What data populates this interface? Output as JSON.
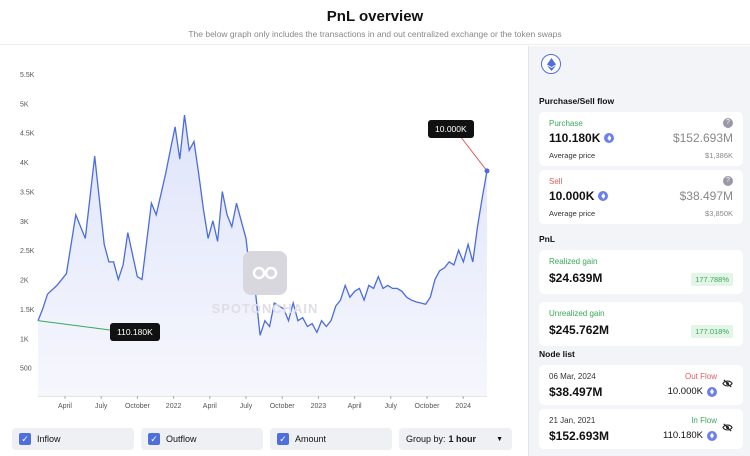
{
  "header": {
    "title": "PnL overview",
    "subtitle": "The below graph only includes the transactions in and out centralized exchange or the token swaps"
  },
  "chart_data": {
    "type": "area",
    "title": "",
    "y_ticks": [
      "5.5K",
      "5K",
      "4.5K",
      "4K",
      "3.5K",
      "3K",
      "2.5K",
      "2K",
      "1.5K",
      "1K",
      "500"
    ],
    "x_ticks": [
      "April",
      "July",
      "October",
      "2022",
      "April",
      "July",
      "October",
      "2023",
      "April",
      "July",
      "October",
      "2024"
    ],
    "ylim": [
      0,
      5500
    ],
    "series": [
      {
        "name": "ETH price",
        "points": [
          [
            0,
            1300
          ],
          [
            1,
            1500
          ],
          [
            2,
            1750
          ],
          [
            4,
            1900
          ],
          [
            6,
            2100
          ],
          [
            8,
            3100
          ],
          [
            10,
            2700
          ],
          [
            12,
            4100
          ],
          [
            14,
            2600
          ],
          [
            15,
            2300
          ],
          [
            16,
            2300
          ],
          [
            17,
            2000
          ],
          [
            18,
            2250
          ],
          [
            19,
            2800
          ],
          [
            21,
            2050
          ],
          [
            22,
            2000
          ],
          [
            24,
            3300
          ],
          [
            25,
            3100
          ],
          [
            26,
            3450
          ],
          [
            27,
            3800
          ],
          [
            28,
            4200
          ],
          [
            29,
            4600
          ],
          [
            30,
            4050
          ],
          [
            31,
            4800
          ],
          [
            32,
            4200
          ],
          [
            33,
            4350
          ],
          [
            34,
            3800
          ],
          [
            35,
            3200
          ],
          [
            36,
            2700
          ],
          [
            37,
            3000
          ],
          [
            38,
            2650
          ],
          [
            39,
            3500
          ],
          [
            40,
            3100
          ],
          [
            41,
            2900
          ],
          [
            42,
            3300
          ],
          [
            43,
            3000
          ],
          [
            44,
            2700
          ],
          [
            45,
            2000
          ],
          [
            46,
            1800
          ],
          [
            47,
            1050
          ],
          [
            48,
            1300
          ],
          [
            49,
            1200
          ],
          [
            50,
            1600
          ],
          [
            52,
            1500
          ],
          [
            53,
            1300
          ],
          [
            54,
            1600
          ],
          [
            55,
            1300
          ],
          [
            56,
            1350
          ],
          [
            57,
            1200
          ],
          [
            58,
            1250
          ],
          [
            59,
            1100
          ],
          [
            60,
            1300
          ],
          [
            61,
            1200
          ],
          [
            62,
            1300
          ],
          [
            63,
            1550
          ],
          [
            64,
            1650
          ],
          [
            65,
            1900
          ],
          [
            66,
            1700
          ],
          [
            67,
            1800
          ],
          [
            68,
            1850
          ],
          [
            69,
            1650
          ],
          [
            70,
            1900
          ],
          [
            71,
            1850
          ],
          [
            72,
            2050
          ],
          [
            73,
            1850
          ],
          [
            74,
            1900
          ],
          [
            75,
            1850
          ],
          [
            76,
            1850
          ],
          [
            77,
            1800
          ],
          [
            78,
            1700
          ],
          [
            79,
            1650
          ],
          [
            80,
            1620
          ],
          [
            81,
            1600
          ],
          [
            82,
            1580
          ],
          [
            83,
            1700
          ],
          [
            84,
            2000
          ],
          [
            85,
            2150
          ],
          [
            86,
            2200
          ],
          [
            87,
            2300
          ],
          [
            88,
            2250
          ],
          [
            89,
            2500
          ],
          [
            90,
            2300
          ],
          [
            91,
            2600
          ],
          [
            92,
            2300
          ],
          [
            93,
            2900
          ],
          [
            94,
            3400
          ],
          [
            95,
            3850
          ]
        ]
      }
    ],
    "annotations": [
      {
        "label": "10.000K",
        "note": "sell"
      },
      {
        "label": "110.180K",
        "note": "purchase"
      }
    ]
  },
  "watermark": {
    "text": "SPOTONCHAIN"
  },
  "controls": {
    "inflow_label": "Inflow",
    "outflow_label": "Outflow",
    "amount_label": "Amount",
    "group_prefix": "Group by:",
    "group_value": "1 hour"
  },
  "panel": {
    "flow_title": "Purchase/Sell flow",
    "purchase": {
      "label": "Purchase",
      "amount": "110.180K",
      "usd": "$152.693M",
      "avg_label": "Average price",
      "avg_value": "$1,386K"
    },
    "sell": {
      "label": "Sell",
      "amount": "10.000K",
      "usd": "$38.497M",
      "avg_label": "Average price",
      "avg_value": "$3,850K"
    },
    "pnl_title": "PnL",
    "realized": {
      "label": "Realized gain",
      "value": "$24.639M",
      "pct": "177.788%"
    },
    "unrealized": {
      "label": "Unrealized gain",
      "value": "$245.762M",
      "pct": "177.018%"
    },
    "node_title": "Node list",
    "nodes": [
      {
        "date": "06 Mar, 2024",
        "flow": "Out Flow",
        "usd": "$38.497M",
        "amount": "10.000K"
      },
      {
        "date": "21 Jan, 2021",
        "flow": "In Flow",
        "usd": "$152.693M",
        "amount": "110.180K"
      }
    ]
  },
  "colors": {
    "line": "#4a6cde",
    "fill": "#e8ecfb",
    "green": "#3aa85a",
    "red": "#e05c5c"
  }
}
